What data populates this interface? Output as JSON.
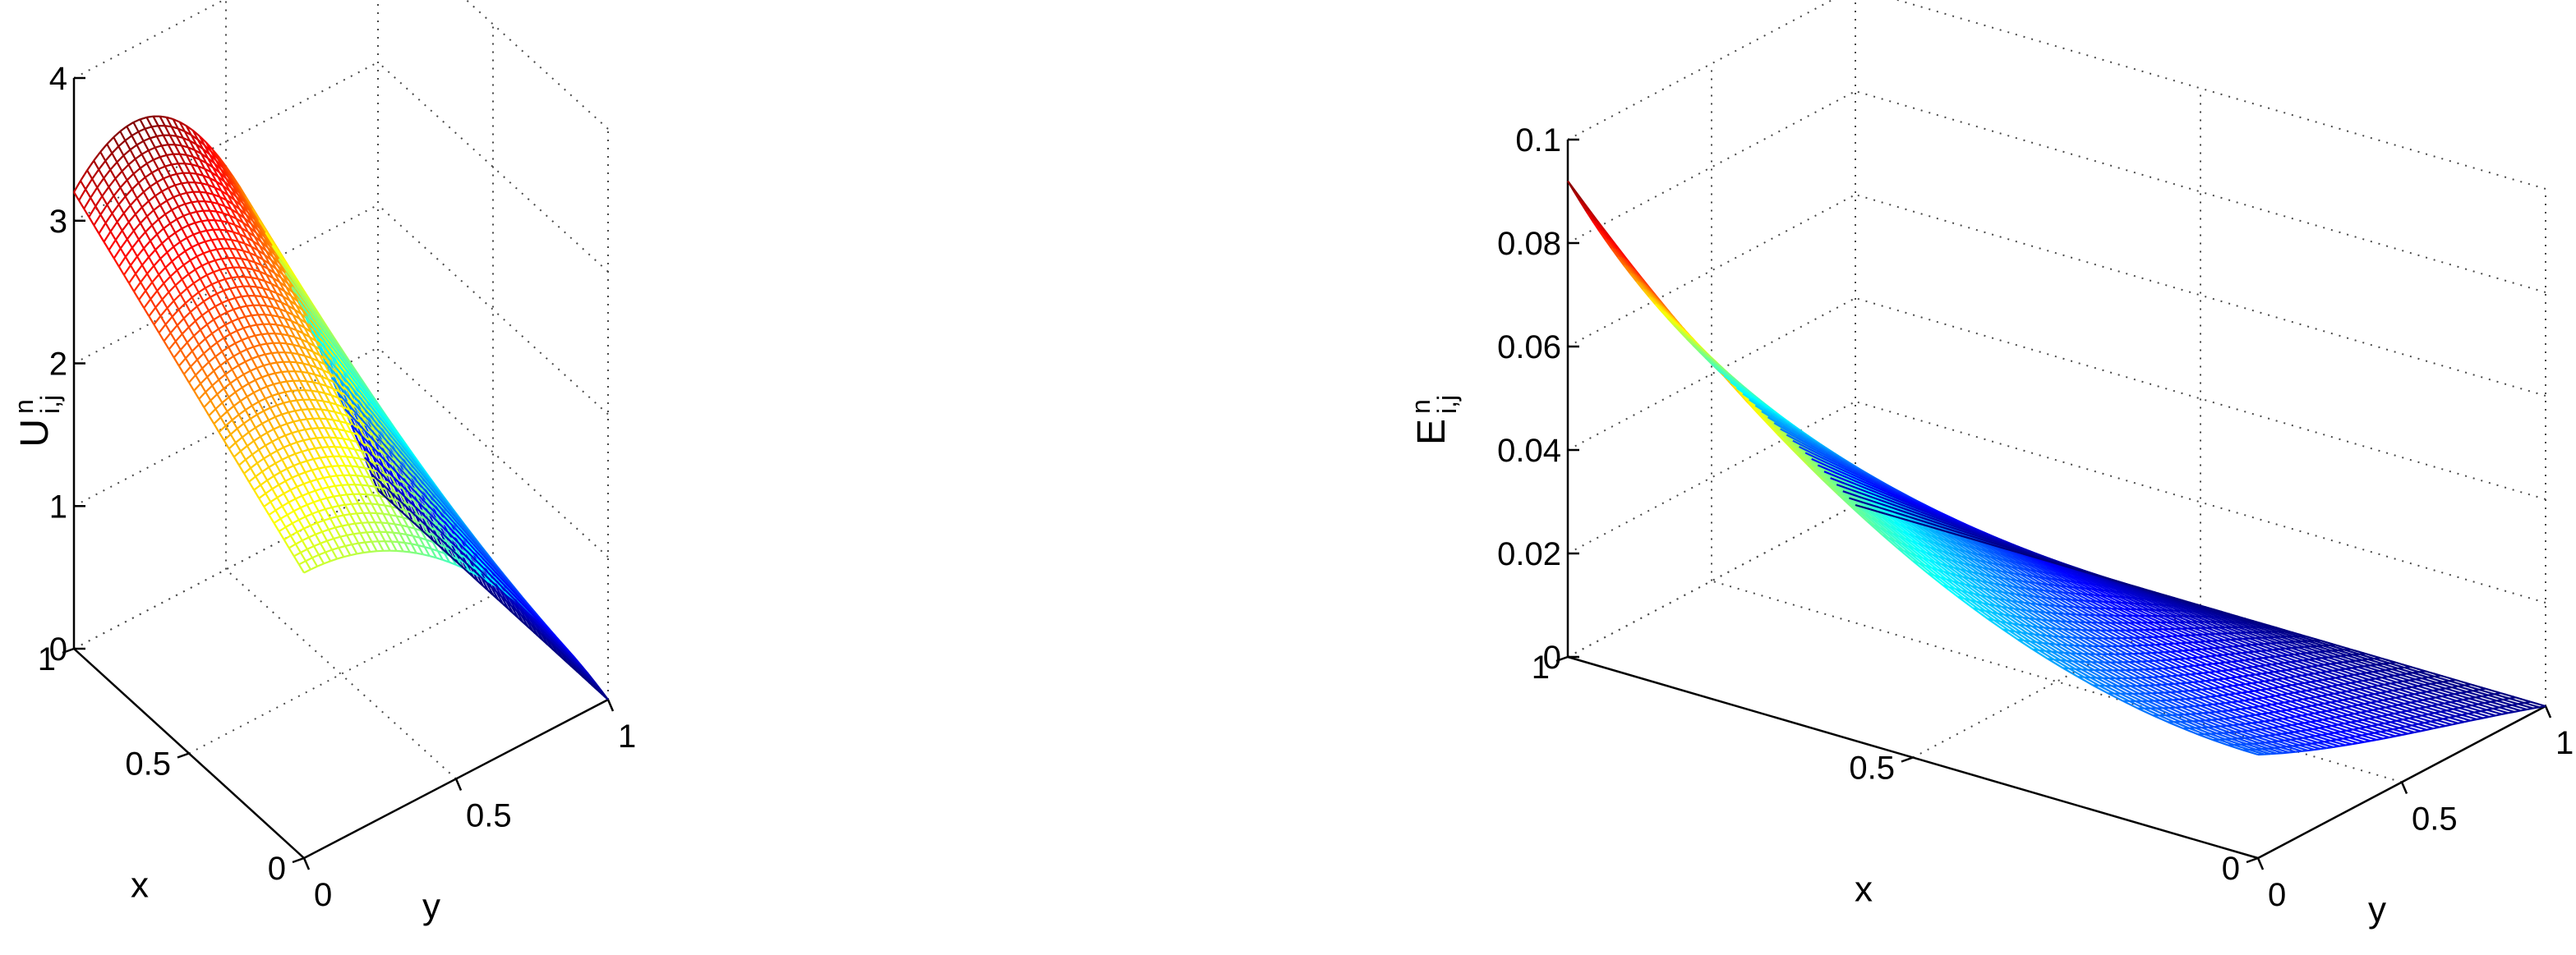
{
  "chart_data": [
    {
      "type": "surface",
      "zlabel_main": "U",
      "zlabel_sup": "n",
      "zlabel_sub": "i,j",
      "xlabel": "x",
      "ylabel": "y",
      "xlim": [
        0,
        1
      ],
      "ylim": [
        0,
        1
      ],
      "zlim": [
        0,
        4
      ],
      "xticks": [
        "0",
        "0.5",
        "1"
      ],
      "yticks": [
        "0",
        "0.5",
        "1"
      ],
      "zticks": [
        "0",
        "1",
        "2",
        "3",
        "4"
      ],
      "grid": true,
      "colormap": "jet",
      "surface_corners": {
        "x0_y0": 2.0,
        "x1_y0": 3.2,
        "x0_y1": 0.0,
        "x1_y1": 0.0
      },
      "surface_peak": {
        "x": 1.0,
        "y": 0.3,
        "z": 3.48
      }
    },
    {
      "type": "surface",
      "zlabel_main": "E",
      "zlabel_sup": "n",
      "zlabel_sub": "i,j",
      "xlabel": "x",
      "ylabel": "y",
      "xlim": [
        0,
        1
      ],
      "ylim": [
        0,
        1
      ],
      "zlim": [
        0,
        0.1
      ],
      "xticks": [
        "0",
        "0.5",
        "1"
      ],
      "yticks": [
        "0",
        "0.5",
        "1"
      ],
      "zticks": [
        "0",
        "0.02",
        "0.04",
        "0.06",
        "0.08",
        "0.1"
      ],
      "grid": true,
      "colormap": "jet",
      "surface_corners": {
        "x0_y0": 0.02,
        "x1_y0": 0.092,
        "x0_y1": 0.0,
        "x1_y1": 0.0
      }
    }
  ]
}
